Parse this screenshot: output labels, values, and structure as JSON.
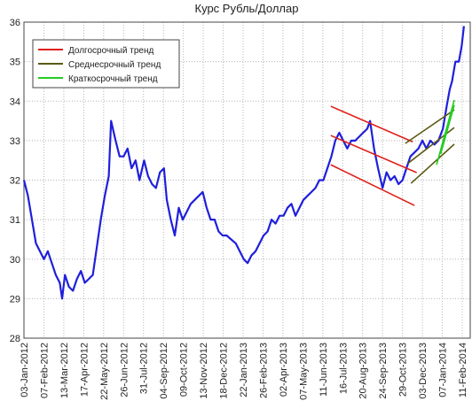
{
  "chart_data": {
    "type": "line",
    "title": "Курс Рубль/Доллар",
    "x": [
      "2012-01-03",
      "2012-01-10",
      "2012-01-17",
      "2012-01-24",
      "2012-01-31",
      "2012-02-07",
      "2012-02-14",
      "2012-02-21",
      "2012-02-28",
      "2012-03-06",
      "2012-03-10",
      "2012-03-15",
      "2012-03-22",
      "2012-03-29",
      "2012-04-05",
      "2012-04-12",
      "2012-04-19",
      "2012-04-26",
      "2012-05-03",
      "2012-05-10",
      "2012-05-17",
      "2012-05-24",
      "2012-05-31",
      "2012-06-04",
      "2012-06-12",
      "2012-06-19",
      "2012-06-26",
      "2012-07-03",
      "2012-07-10",
      "2012-07-17",
      "2012-07-24",
      "2012-08-01",
      "2012-08-08",
      "2012-08-15",
      "2012-08-22",
      "2012-08-29",
      "2012-09-05",
      "2012-09-10",
      "2012-09-17",
      "2012-09-24",
      "2012-10-01",
      "2012-10-08",
      "2012-10-15",
      "2012-10-22",
      "2012-10-29",
      "2012-11-05",
      "2012-11-12",
      "2012-11-19",
      "2012-11-26",
      "2012-12-03",
      "2012-12-10",
      "2012-12-17",
      "2012-12-24",
      "2013-01-09",
      "2013-01-16",
      "2013-01-23",
      "2013-01-30",
      "2013-02-06",
      "2013-02-13",
      "2013-02-20",
      "2013-02-27",
      "2013-03-06",
      "2013-03-13",
      "2013-03-20",
      "2013-03-27",
      "2013-04-03",
      "2013-04-10",
      "2013-04-17",
      "2013-04-24",
      "2013-05-01",
      "2013-05-08",
      "2013-05-15",
      "2013-05-22",
      "2013-05-29",
      "2013-06-05",
      "2013-06-12",
      "2013-06-19",
      "2013-06-26",
      "2013-07-03",
      "2013-07-10",
      "2013-07-17",
      "2013-07-24",
      "2013-07-31",
      "2013-08-07",
      "2013-08-14",
      "2013-08-21",
      "2013-08-28",
      "2013-09-02",
      "2013-09-09",
      "2013-09-16",
      "2013-09-24",
      "2013-10-01",
      "2013-10-08",
      "2013-10-15",
      "2013-10-22",
      "2013-10-29",
      "2013-11-05",
      "2013-11-12",
      "2013-11-19",
      "2013-11-26",
      "2013-12-03",
      "2013-12-10",
      "2013-12-17",
      "2013-12-24",
      "2013-12-31",
      "2014-01-08",
      "2014-01-15",
      "2014-01-20",
      "2014-01-24",
      "2014-01-30",
      "2014-02-05",
      "2014-02-10",
      "2014-02-14"
    ],
    "series": [
      {
        "color": "#1f1fdc",
        "values": [
          32.0,
          31.6,
          31.0,
          30.4,
          30.2,
          30.0,
          30.2,
          29.9,
          29.6,
          29.4,
          29.0,
          29.6,
          29.3,
          29.2,
          29.5,
          29.7,
          29.4,
          29.5,
          29.6,
          30.3,
          31.0,
          31.6,
          32.1,
          33.5,
          33.0,
          32.6,
          32.6,
          32.8,
          32.3,
          32.5,
          32.0,
          32.5,
          32.1,
          31.9,
          31.8,
          32.2,
          32.3,
          31.5,
          31.0,
          30.6,
          31.3,
          31.0,
          31.2,
          31.4,
          31.5,
          31.6,
          31.7,
          31.3,
          31.0,
          31.0,
          30.7,
          30.6,
          30.6,
          30.4,
          30.2,
          30.0,
          29.9,
          30.1,
          30.2,
          30.4,
          30.6,
          30.7,
          31.0,
          30.9,
          31.1,
          31.1,
          31.3,
          31.4,
          31.1,
          31.3,
          31.5,
          31.6,
          31.7,
          31.8,
          32.0,
          32.0,
          32.3,
          32.6,
          33.0,
          33.2,
          33.0,
          32.8,
          33.0,
          33.0,
          33.1,
          33.2,
          33.3,
          33.5,
          32.8,
          32.3,
          31.8,
          32.2,
          32.0,
          32.1,
          31.9,
          32.0,
          32.3,
          32.6,
          32.7,
          32.8,
          33.0,
          32.8,
          33.0,
          32.9,
          33.0,
          33.3,
          33.9,
          34.3,
          34.5,
          35.0,
          35.0,
          35.4,
          35.9
        ]
      }
    ],
    "trends": [
      {
        "name": "Долгосрочный тренд",
        "color": "#e0201b",
        "lines": [
          {
            "x": [
              "2013-06-25",
              "2013-11-16"
            ],
            "y": [
              33.87,
              32.97
            ]
          },
          {
            "x": [
              "2013-06-25",
              "2013-11-23"
            ],
            "y": [
              33.13,
              32.19
            ]
          },
          {
            "x": [
              "2013-06-25",
              "2013-11-19"
            ],
            "y": [
              32.39,
              31.36
            ]
          }
        ]
      },
      {
        "name": "Среднесрочный тренд",
        "color": "#5c5a14",
        "lines": [
          {
            "x": [
              "2013-11-03",
              "2014-01-28"
            ],
            "y": [
              32.93,
              33.78
            ]
          },
          {
            "x": [
              "2013-11-08",
              "2014-01-28"
            ],
            "y": [
              32.43,
              33.33
            ]
          },
          {
            "x": [
              "2013-11-13",
              "2014-01-28"
            ],
            "y": [
              31.92,
              32.91
            ]
          }
        ]
      },
      {
        "name": "Краткосрочный тренд",
        "color": "#22cc22",
        "lines": [
          {
            "x": [
              "2013-12-28",
              "2014-01-28"
            ],
            "y": [
              32.39,
              34.03
            ]
          },
          {
            "x": [
              "2014-01-04",
              "2014-01-28"
            ],
            "y": [
              32.66,
              33.9
            ]
          }
        ]
      }
    ],
    "xlim": [
      "2012-01-03",
      "2014-02-25"
    ],
    "xticks": [
      {
        "value": "2012-01-03",
        "label": "03-Jan-2012"
      },
      {
        "value": "2012-02-07",
        "label": "07-Feb-2012"
      },
      {
        "value": "2012-03-13",
        "label": "13-Mar-2012"
      },
      {
        "value": "2012-04-17",
        "label": "17-Apr-2012"
      },
      {
        "value": "2012-05-22",
        "label": "22-May-2012"
      },
      {
        "value": "2012-06-26",
        "label": "26-Jun-2012"
      },
      {
        "value": "2012-07-31",
        "label": "31-Jul-2012"
      },
      {
        "value": "2012-09-04",
        "label": "04-Sep-2012"
      },
      {
        "value": "2012-10-09",
        "label": "09-Oct-2012"
      },
      {
        "value": "2012-11-13",
        "label": "13-Nov-2012"
      },
      {
        "value": "2012-12-18",
        "label": "18-Dec-2012"
      },
      {
        "value": "2013-01-22",
        "label": "22-Jan-2013"
      },
      {
        "value": "2013-02-26",
        "label": "26-Feb-2013"
      },
      {
        "value": "2013-04-02",
        "label": "02-Apr-2013"
      },
      {
        "value": "2013-05-07",
        "label": "07-May-2013"
      },
      {
        "value": "2013-06-11",
        "label": "11-Jun-2013"
      },
      {
        "value": "2013-07-16",
        "label": "16-Jul-2013"
      },
      {
        "value": "2013-08-20",
        "label": "20-Aug-2013"
      },
      {
        "value": "2013-09-24",
        "label": "24-Sep-2013"
      },
      {
        "value": "2013-10-29",
        "label": "29-Oct-2013"
      },
      {
        "value": "2013-12-03",
        "label": "03-Dec-2013"
      },
      {
        "value": "2014-01-07",
        "label": "07-Jan-2014"
      },
      {
        "value": "2014-02-11",
        "label": "11-Feb-2014"
      }
    ],
    "ylim": [
      28,
      36
    ],
    "yticks": [
      28,
      29,
      30,
      31,
      32,
      33,
      34,
      35,
      36
    ],
    "grid": true,
    "legend": "upper left"
  }
}
